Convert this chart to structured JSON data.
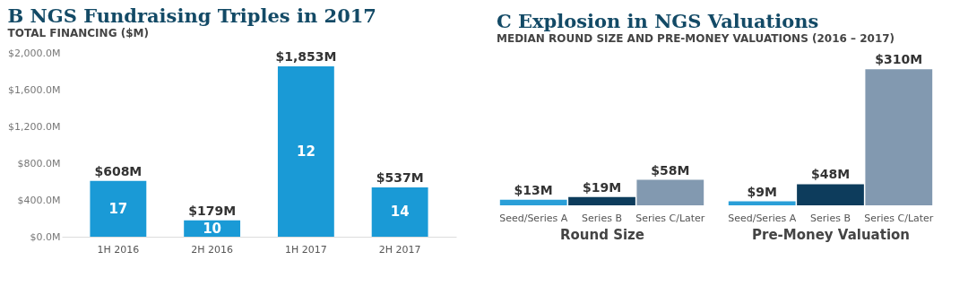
{
  "chart_data": [
    {
      "type": "bar",
      "title": "NGS Fundraising Triples in 2017",
      "subtitle": "TOTAL FINANCING ($M)",
      "categories": [
        "1H 2016",
        "2H 2016",
        "1H 2017",
        "2H 2017"
      ],
      "values": [
        608,
        179,
        1853,
        537
      ],
      "color": "#1a9ad6",
      "value_labels": [
        "$608M",
        "$179M",
        "$1,853M",
        "$537M"
      ],
      "ylim": [
        0,
        2000
      ],
      "yticks": [
        {
          "value": 0,
          "label": "$0.0M"
        },
        {
          "value": 400,
          "label": "$400.0M"
        },
        {
          "value": 800,
          "label": "$800.0M"
        },
        {
          "value": 1200,
          "label": "$1,200.0M"
        },
        {
          "value": 1600,
          "label": "$1,600.0M"
        },
        {
          "value": 2000,
          "label": "$2,000.0M"
        }
      ],
      "annotations": [
        "B",
        "17",
        "10",
        "12",
        "14"
      ]
    },
    {
      "type": "bar",
      "title": "Explosion in NGS Valuations",
      "subtitle": "MEDIAN ROUND SIZE AND PRE-MONEY VALUATIONS (2016 – 2017)",
      "xlabel": "Round Size",
      "categories": [
        "Seed/Series A",
        "Series B",
        "Series C/Later"
      ],
      "values": [
        13,
        19,
        58
      ],
      "colors": [
        "#2a9fd8",
        "#0d3c5c",
        "#8299b0"
      ],
      "value_labels": [
        "$13M",
        "$19M",
        "$58M"
      ],
      "annotations": [
        "C"
      ],
      "tick_labels": "x"
    },
    {
      "type": "bar",
      "xlabel": "Pre-Money Valuation",
      "categories": [
        "Seed/Series A",
        "Series B",
        "Series C/Later"
      ],
      "values": [
        9,
        48,
        310
      ],
      "colors": [
        "#2a9fd8",
        "#0d3c5c",
        "#8299b0"
      ],
      "value_labels": [
        "$9M",
        "$48M",
        "$310M"
      ],
      "tick_labels": "x"
    }
  ]
}
